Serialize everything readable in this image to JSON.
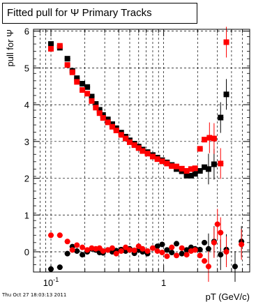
{
  "chart_data": {
    "type": "scatter",
    "title": "Fitted pull for  Ψ   Primary Tracks",
    "xlabel": "pT (GeV/c)",
    "ylabel": "pull for  Ψ",
    "x_scale": "log",
    "xlim": [
      0.07,
      5.8
    ],
    "ylim": [
      -0.55,
      6.05
    ],
    "x_tick_labels": [
      {
        "value": 0.1,
        "label": "10",
        "exp": "-1"
      },
      {
        "value": 1,
        "label": "1",
        "exp": ""
      }
    ],
    "y_ticks": [
      0,
      1,
      2,
      3,
      4,
      5,
      6
    ],
    "grid": true,
    "colors": {
      "series_black": "#000000",
      "series_red": "#ff0000"
    },
    "series": [
      {
        "name": "",
        "role": "sigma",
        "color": "#000000",
        "marker": "square",
        "points": [
          [
            0.1,
            5.65
          ],
          [
            0.12,
            5.55
          ],
          [
            0.14,
            5.25
          ],
          [
            0.155,
            4.92
          ],
          [
            0.17,
            4.72
          ],
          [
            0.19,
            4.57
          ],
          [
            0.21,
            4.48
          ],
          [
            0.23,
            4.22
          ],
          [
            0.25,
            4.02
          ],
          [
            0.27,
            3.86
          ],
          [
            0.29,
            3.72
          ],
          [
            0.32,
            3.6
          ],
          [
            0.35,
            3.47
          ],
          [
            0.38,
            3.36
          ],
          [
            0.42,
            3.24
          ],
          [
            0.46,
            3.13
          ],
          [
            0.5,
            3.03
          ],
          [
            0.55,
            2.94
          ],
          [
            0.6,
            2.86
          ],
          [
            0.65,
            2.78
          ],
          [
            0.72,
            2.71
          ],
          [
            0.8,
            2.63
          ],
          [
            0.88,
            2.56
          ],
          [
            0.97,
            2.49
          ],
          [
            1.07,
            2.43
          ],
          [
            1.18,
            2.36
          ],
          [
            1.3,
            2.25
          ],
          [
            1.45,
            2.19
          ],
          [
            1.6,
            2.07
          ],
          [
            1.75,
            2.07
          ],
          [
            1.9,
            2.12
          ],
          [
            2.1,
            2.2
          ],
          [
            2.3,
            2.3
          ],
          [
            2.5,
            2.25
          ],
          [
            2.8,
            2.38
          ],
          [
            3.2,
            3.65
          ],
          [
            3.6,
            4.28
          ]
        ]
      },
      {
        "name": "",
        "role": "sigma",
        "color": "#ff0000",
        "marker": "square",
        "points": [
          [
            0.1,
            5.52
          ],
          [
            0.12,
            5.6
          ],
          [
            0.14,
            5.08
          ],
          [
            0.155,
            4.88
          ],
          [
            0.17,
            4.62
          ],
          [
            0.19,
            4.4
          ],
          [
            0.21,
            4.3
          ],
          [
            0.23,
            4.1
          ],
          [
            0.25,
            3.92
          ],
          [
            0.27,
            3.77
          ],
          [
            0.29,
            3.64
          ],
          [
            0.32,
            3.52
          ],
          [
            0.35,
            3.4
          ],
          [
            0.38,
            3.3
          ],
          [
            0.42,
            3.18
          ],
          [
            0.46,
            3.08
          ],
          [
            0.5,
            2.98
          ],
          [
            0.55,
            2.9
          ],
          [
            0.6,
            2.82
          ],
          [
            0.65,
            2.74
          ],
          [
            0.72,
            2.67
          ],
          [
            0.8,
            2.59
          ],
          [
            0.88,
            2.52
          ],
          [
            0.97,
            2.46
          ],
          [
            1.07,
            2.4
          ],
          [
            1.18,
            2.33
          ],
          [
            1.3,
            2.32
          ],
          [
            1.45,
            2.26
          ],
          [
            1.6,
            2.2
          ],
          [
            1.75,
            2.25
          ],
          [
            1.9,
            2.27
          ],
          [
            2.1,
            2.8
          ],
          [
            2.3,
            3.05
          ],
          [
            2.55,
            3.1
          ],
          [
            2.8,
            3.08
          ],
          [
            3.2,
            2.4
          ],
          [
            3.6,
            5.7
          ]
        ]
      },
      {
        "name": "",
        "role": "mean",
        "color": "#000000",
        "marker": "circle",
        "points": [
          [
            0.1,
            -0.47
          ],
          [
            0.12,
            -0.42
          ],
          [
            0.14,
            -0.05
          ],
          [
            0.155,
            0.14
          ],
          [
            0.17,
            0.02
          ],
          [
            0.19,
            -0.08
          ],
          [
            0.21,
            0.0
          ],
          [
            0.23,
            0.08
          ],
          [
            0.25,
            0.05
          ],
          [
            0.27,
            -0.02
          ],
          [
            0.29,
            -0.03
          ],
          [
            0.32,
            0.05
          ],
          [
            0.35,
            0.0
          ],
          [
            0.38,
            0.03
          ],
          [
            0.42,
            0.06
          ],
          [
            0.46,
            0.02
          ],
          [
            0.5,
            0.08
          ],
          [
            0.55,
            -0.04
          ],
          [
            0.6,
            0.05
          ],
          [
            0.65,
            0.0
          ],
          [
            0.72,
            -0.05
          ],
          [
            0.8,
            0.1
          ],
          [
            0.88,
            0.15
          ],
          [
            0.97,
            0.2
          ],
          [
            1.07,
            0.05
          ],
          [
            1.18,
            -0.02
          ],
          [
            1.3,
            0.22
          ],
          [
            1.45,
            -0.05
          ],
          [
            1.6,
            0.05
          ],
          [
            1.75,
            0.12
          ],
          [
            1.9,
            0.08
          ],
          [
            2.1,
            0.06
          ],
          [
            2.3,
            0.25
          ],
          [
            2.5,
            0.08
          ],
          [
            2.8,
            0.28
          ],
          [
            3.2,
            -0.08
          ],
          [
            3.6,
            0.06
          ],
          [
            4.3,
            -0.4
          ],
          [
            4.9,
            0.28
          ]
        ]
      },
      {
        "name": "",
        "role": "mean",
        "color": "#ff0000",
        "marker": "circle",
        "points": [
          [
            0.1,
            0.45
          ],
          [
            0.12,
            0.45
          ],
          [
            0.14,
            0.28
          ],
          [
            0.155,
            0.05
          ],
          [
            0.17,
            0.18
          ],
          [
            0.19,
            0.12
          ],
          [
            0.21,
            0.05
          ],
          [
            0.23,
            0.1
          ],
          [
            0.25,
            0.08
          ],
          [
            0.27,
            0.1
          ],
          [
            0.29,
            0.02
          ],
          [
            0.32,
            0.05
          ],
          [
            0.35,
            0.1
          ],
          [
            0.38,
            -0.05
          ],
          [
            0.42,
            0.02
          ],
          [
            0.46,
            0.12
          ],
          [
            0.5,
            0.05
          ],
          [
            0.55,
            0.04
          ],
          [
            0.6,
            0.15
          ],
          [
            0.65,
            0.08
          ],
          [
            0.72,
            0.02
          ],
          [
            0.8,
            0.1
          ],
          [
            0.88,
            0.02
          ],
          [
            0.97,
            -0.02
          ],
          [
            1.07,
            -0.12
          ],
          [
            1.18,
            0.12
          ],
          [
            1.3,
            -0.1
          ],
          [
            1.45,
            0.1
          ],
          [
            1.6,
            -0.08
          ],
          [
            1.75,
            0.02
          ],
          [
            1.9,
            0.05
          ],
          [
            2.1,
            -0.1
          ],
          [
            2.3,
            -0.25
          ],
          [
            2.5,
            -0.4
          ],
          [
            2.8,
            0.25
          ],
          [
            3.0,
            0.75
          ],
          [
            3.2,
            0.52
          ],
          [
            3.6,
            0.0
          ],
          [
            4.9,
            0.2
          ]
        ]
      }
    ]
  },
  "footer": {
    "timestamp": "Thu Oct 27 18:03:13 2011"
  }
}
